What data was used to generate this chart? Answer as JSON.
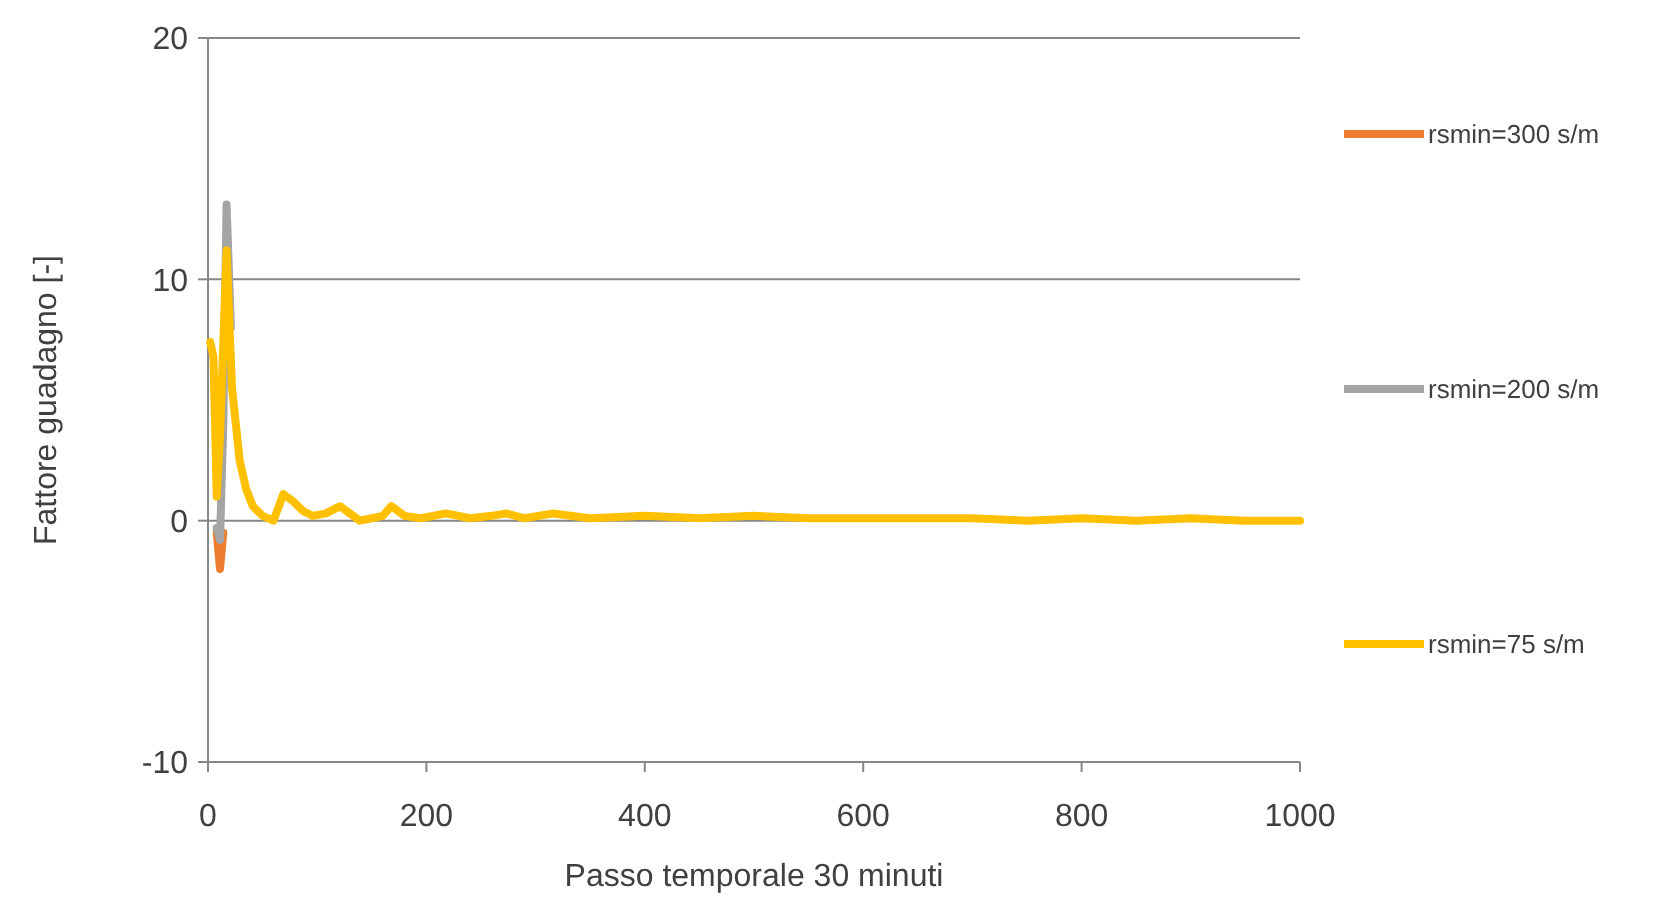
{
  "chart_data": {
    "type": "line",
    "xlabel": "Passo temporale 30 minuti",
    "ylabel": "Fattore guadagno [-]",
    "series": [
      {
        "name": "rsmin=300 s/m",
        "color": "#ed7d31",
        "x": [
          8,
          11,
          14
        ],
        "values": [
          -0.5,
          -2,
          -0.5
        ]
      },
      {
        "name": "rsmin=200 s/m",
        "color": "#a5a5a5",
        "x": [
          8,
          11,
          14,
          17,
          21
        ],
        "values": [
          -0.3,
          -0.8,
          4,
          13.1,
          8
        ]
      },
      {
        "name": "rsmin=75 s/m",
        "color": "#ffc000",
        "x": [
          2,
          5,
          8,
          11,
          17,
          22,
          29,
          35,
          41,
          50,
          60,
          69,
          78,
          87,
          96,
          108,
          121,
          130,
          139,
          150,
          160,
          168,
          180,
          195,
          218,
          240,
          260,
          273,
          290,
          316,
          350,
          400,
          450,
          500,
          550,
          600,
          650,
          700,
          750,
          800,
          850,
          900,
          950,
          1000
        ],
        "values": [
          7.4,
          6.8,
          1,
          3.5,
          11.2,
          5.5,
          2.5,
          1.3,
          0.6,
          0.2,
          0,
          1.1,
          0.8,
          0.4,
          0.2,
          0.3,
          0.6,
          0.3,
          0,
          0.1,
          0.2,
          0.6,
          0.2,
          0.1,
          0.3,
          0.1,
          0.2,
          0.3,
          0.1,
          0.3,
          0.1,
          0.2,
          0.1,
          0.2,
          0.1,
          0.1,
          0.1,
          0.1,
          0,
          0.1,
          0,
          0.1,
          0,
          0
        ]
      }
    ],
    "xlim": [
      0,
      1000
    ],
    "xticks": [
      0,
      200,
      400,
      600,
      800,
      1000
    ],
    "ylim": [
      -10,
      20
    ],
    "yticks": [
      -10,
      0,
      10,
      20
    ],
    "grid": "y",
    "legend": "right",
    "marker": "none",
    "line_style": "solid"
  }
}
